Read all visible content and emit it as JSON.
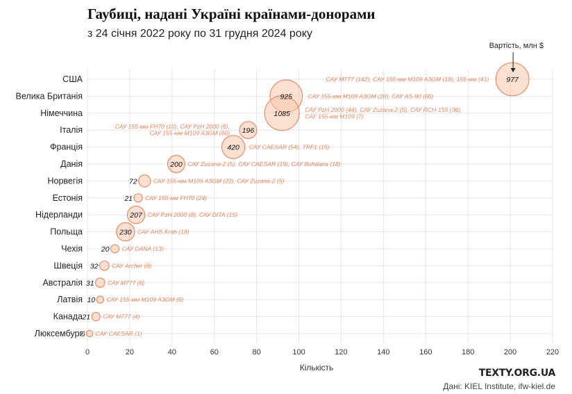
{
  "header": {
    "title": "Гаубиці, надані Україні країнами-донорами",
    "subtitle": "з 24 січня 2022 року по 31 грудня 2024 року"
  },
  "footer": {
    "brand": "TEXTY.ORG.UA",
    "source": "Дані: KIEL Institute, ifw-kiel.de"
  },
  "colors": {
    "bubble_fill": "#f6c9ad",
    "bubble_stroke": "#e8845a",
    "annotation": "#e8845a",
    "grid": "#e5e5e5",
    "axis_text": "#333333"
  },
  "chart_data": {
    "type": "scatter",
    "title": "Гаубиці, надані Україні країнами-донорами",
    "subtitle": "з 24 січня 2022 року по 31 грудня 2024 року",
    "xlabel": "Кількість",
    "ylabel": "",
    "xlim": [
      0,
      220
    ],
    "xticks": [
      0,
      20,
      40,
      60,
      80,
      100,
      120,
      140,
      160,
      180,
      200,
      220
    ],
    "size_legend": "Вартість, млн $",
    "grid": true,
    "points": [
      {
        "country": "США",
        "x": 201,
        "value": 977,
        "note": "САУ M777 (142), САУ 155-мм M109 A3GM (18), 155-мм (41)"
      },
      {
        "country": "Велика Британія",
        "x": 94,
        "value": 925,
        "note": "САУ 155-мм M109 A3GM (28), САУ AS-90 (66)"
      },
      {
        "country": "Німеччина",
        "x": 92,
        "value": 1085,
        "note": "САУ PzH 2000 (44), САУ Zuzana-2 (5), САУ RCH-155 (36), САУ 155-мм M109 (7)"
      },
      {
        "country": "Італія",
        "x": 76,
        "value": 196,
        "note": "САУ 155-мм FH70 (10), САУ PzH 2000 (6), САУ 155-мм M109 A3GM (60)"
      },
      {
        "country": "Франція",
        "x": 69,
        "value": 420,
        "note": "САУ CAESAR (54), TRF1 (15)"
      },
      {
        "country": "Данія",
        "x": 42,
        "value": 200,
        "note": "САУ Zuzana-2 (5), САУ CAESAR (19), САУ Bohdana (18)"
      },
      {
        "country": "Норвегія",
        "x": 27,
        "value": 72,
        "note": "САУ 155-мм M109 A3GM (22), САУ Zuzana-2 (5)"
      },
      {
        "country": "Естонія",
        "x": 24,
        "value": 21,
        "note": "САУ 155-мм FH70 (24)"
      },
      {
        "country": "Нідерланди",
        "x": 23,
        "value": 207,
        "note": "САУ PzH 2000 (8), САУ DITA (15)"
      },
      {
        "country": "Польща",
        "x": 18,
        "value": 230,
        "note": "САУ AHS Krab (18)"
      },
      {
        "country": "Чехія",
        "x": 13,
        "value": 20,
        "note": "САУ DANA (13)"
      },
      {
        "country": "Швеція",
        "x": 8,
        "value": 32,
        "note": "САУ Archer (8)"
      },
      {
        "country": "Австралія",
        "x": 6,
        "value": 31,
        "note": "САУ M777 (6)"
      },
      {
        "country": "Латвія",
        "x": 6,
        "value": 10,
        "note": "САУ 155-мм M109 A3GM (6)"
      },
      {
        "country": "Канада",
        "x": 4,
        "value": 21,
        "note": "САУ M777 (4)"
      },
      {
        "country": "Люксембург",
        "x": 1,
        "value": 6,
        "note": "САУ CAESAR (1)"
      }
    ]
  }
}
